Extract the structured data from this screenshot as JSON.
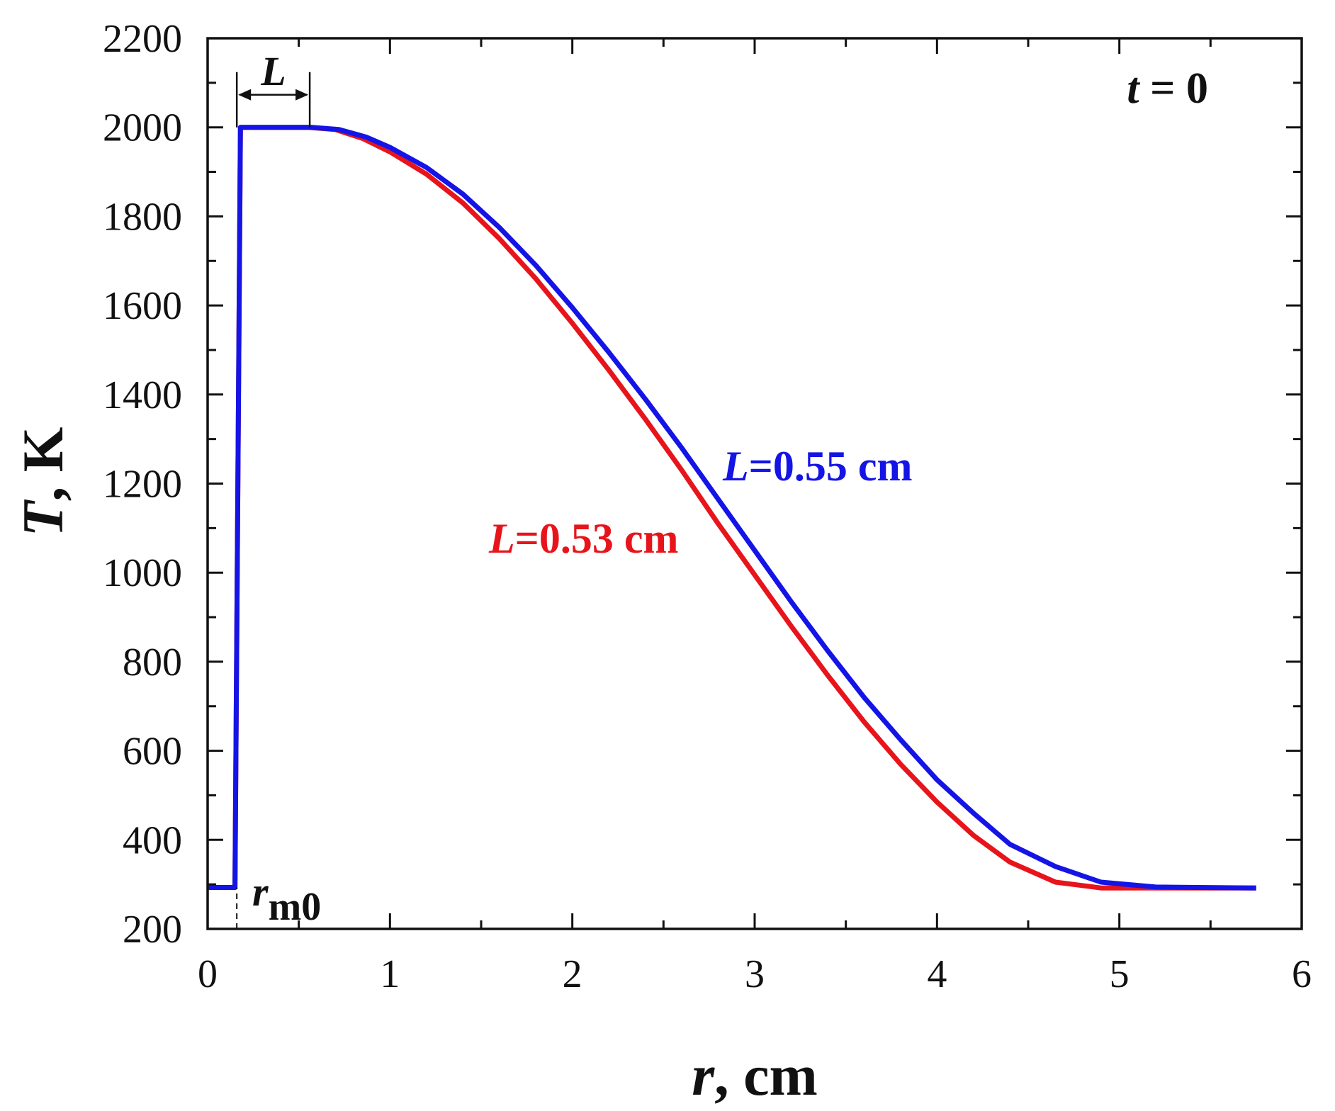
{
  "chart_data": {
    "type": "line",
    "xlabel": {
      "var": "r",
      "unit": ", cm"
    },
    "ylabel": {
      "var": "T",
      "unit": ", K"
    },
    "xlim": [
      0,
      6
    ],
    "ylim": [
      200,
      2200
    ],
    "x_ticks": [
      0,
      1,
      2,
      3,
      4,
      5,
      6
    ],
    "y_ticks": [
      200,
      400,
      600,
      800,
      1000,
      1200,
      1400,
      1600,
      1800,
      2000,
      2200
    ],
    "grid": false,
    "legend": "none",
    "annotation_time": {
      "var": "t",
      "rest": " = 0"
    },
    "annotation_L": "L",
    "annotation_rm0": {
      "base": "r",
      "sub": "m0"
    },
    "rm0": 0.16,
    "L_bracket": [
      0.16,
      0.56
    ],
    "series": [
      {
        "name": "L=0.53 cm",
        "label_var": "L",
        "label_rest": "=0.53 cm",
        "color": "#e8141b",
        "points": [
          [
            0,
            293
          ],
          [
            0.15,
            293
          ],
          [
            0.18,
            2000
          ],
          [
            0.3,
            2000
          ],
          [
            0.55,
            2000
          ],
          [
            0.7,
            1995
          ],
          [
            0.85,
            1975
          ],
          [
            1.0,
            1945
          ],
          [
            1.2,
            1895
          ],
          [
            1.4,
            1830
          ],
          [
            1.6,
            1750
          ],
          [
            1.8,
            1660
          ],
          [
            2.0,
            1560
          ],
          [
            2.2,
            1455
          ],
          [
            2.4,
            1345
          ],
          [
            2.6,
            1230
          ],
          [
            2.8,
            1110
          ],
          [
            3.0,
            995
          ],
          [
            3.2,
            880
          ],
          [
            3.4,
            770
          ],
          [
            3.6,
            665
          ],
          [
            3.8,
            570
          ],
          [
            4.0,
            485
          ],
          [
            4.2,
            410
          ],
          [
            4.4,
            350
          ],
          [
            4.65,
            305
          ],
          [
            4.9,
            292
          ],
          [
            5.2,
            292
          ],
          [
            5.75,
            292
          ]
        ]
      },
      {
        "name": "L=0.55 cm",
        "label_var": "L",
        "label_rest": "=0.55 cm",
        "color": "#1414e6",
        "points": [
          [
            0,
            293
          ],
          [
            0.15,
            293
          ],
          [
            0.18,
            2000
          ],
          [
            0.3,
            2000
          ],
          [
            0.57,
            2000
          ],
          [
            0.72,
            1995
          ],
          [
            0.87,
            1978
          ],
          [
            1.0,
            1955
          ],
          [
            1.2,
            1910
          ],
          [
            1.4,
            1850
          ],
          [
            1.6,
            1775
          ],
          [
            1.8,
            1690
          ],
          [
            2.0,
            1595
          ],
          [
            2.2,
            1495
          ],
          [
            2.4,
            1390
          ],
          [
            2.6,
            1280
          ],
          [
            2.8,
            1165
          ],
          [
            3.0,
            1050
          ],
          [
            3.2,
            935
          ],
          [
            3.4,
            825
          ],
          [
            3.6,
            720
          ],
          [
            3.8,
            625
          ],
          [
            4.0,
            535
          ],
          [
            4.2,
            460
          ],
          [
            4.4,
            390
          ],
          [
            4.65,
            340
          ],
          [
            4.9,
            305
          ],
          [
            5.2,
            294
          ],
          [
            5.75,
            292
          ]
        ]
      }
    ]
  }
}
